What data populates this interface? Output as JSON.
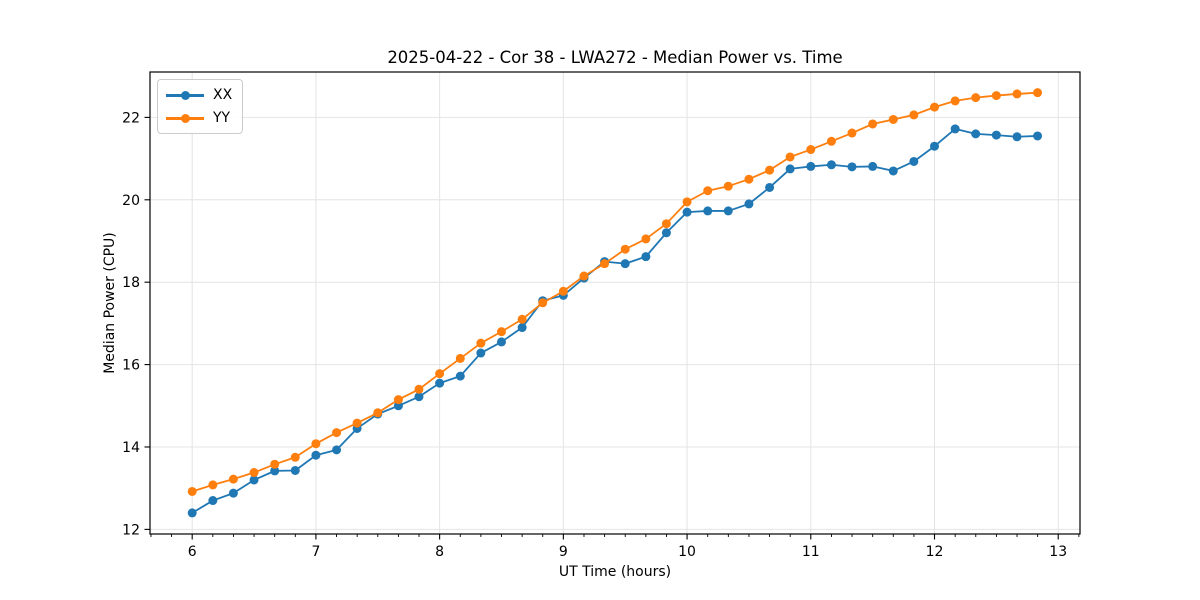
{
  "chart_data": {
    "type": "line",
    "title": "2025-04-22 - Cor 38 - LWA272 - Median Power vs. Time",
    "xlabel": "UT Time (hours)",
    "ylabel": "Median Power (CPU)",
    "x": [
      6.0,
      6.167,
      6.333,
      6.5,
      6.667,
      6.833,
      7.0,
      7.167,
      7.333,
      7.5,
      7.667,
      7.833,
      8.0,
      8.167,
      8.333,
      8.5,
      8.667,
      8.833,
      9.0,
      9.167,
      9.333,
      9.5,
      9.667,
      9.833,
      10.0,
      10.167,
      10.333,
      10.5,
      10.667,
      10.833,
      11.0,
      11.167,
      11.333,
      11.5,
      11.667,
      11.833,
      12.0,
      12.167,
      12.333,
      12.5,
      12.667,
      12.833
    ],
    "series": [
      {
        "name": "XX",
        "color": "#1f77b4",
        "values": [
          12.4,
          12.7,
          12.88,
          13.2,
          13.42,
          13.43,
          13.8,
          13.93,
          14.45,
          14.8,
          15.0,
          15.22,
          15.55,
          15.72,
          16.28,
          16.55,
          16.9,
          17.55,
          17.68,
          18.1,
          18.5,
          18.45,
          18.62,
          19.2,
          19.7,
          19.73,
          19.73,
          19.9,
          20.3,
          20.75,
          20.81,
          20.85,
          20.8,
          20.81,
          20.7,
          20.93,
          21.3,
          21.72,
          21.6,
          21.57,
          21.53,
          21.55
        ]
      },
      {
        "name": "YY",
        "color": "#ff7f0e",
        "values": [
          12.92,
          13.08,
          13.22,
          13.38,
          13.58,
          13.75,
          14.08,
          14.35,
          14.58,
          14.83,
          15.15,
          15.4,
          15.78,
          16.15,
          16.52,
          16.8,
          17.1,
          17.5,
          17.78,
          18.15,
          18.45,
          18.8,
          19.05,
          19.42,
          19.95,
          20.22,
          20.33,
          20.5,
          20.72,
          21.04,
          21.22,
          21.42,
          21.62,
          21.84,
          21.95,
          22.06,
          22.25,
          22.4,
          22.48,
          22.53,
          22.57,
          22.6
        ]
      }
    ],
    "xlim": [
      5.659,
      13.176
    ],
    "ylim": [
      11.888,
      23.102
    ],
    "xticks": [
      6,
      7,
      8,
      9,
      10,
      11,
      12,
      13
    ],
    "yticks": [
      12,
      14,
      16,
      18,
      20,
      22
    ],
    "x_minor_step": 0.16667,
    "grid": true,
    "legend_position": "upper left"
  },
  "colors": {
    "background": "#ffffff",
    "grid": "#e4e4e4",
    "spine": "#000000",
    "tick": "#000000",
    "text": "#000000"
  }
}
